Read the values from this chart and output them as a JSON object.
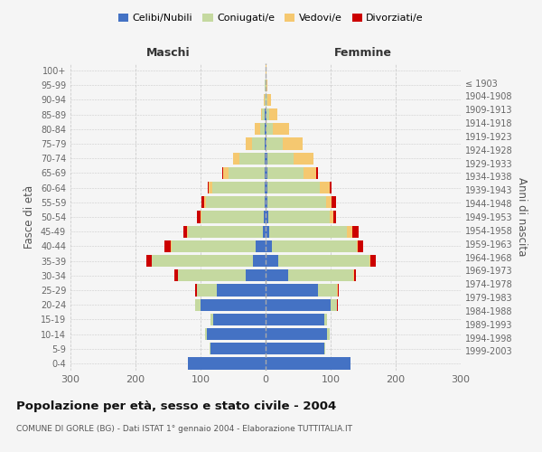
{
  "age_groups": [
    "0-4",
    "5-9",
    "10-14",
    "15-19",
    "20-24",
    "25-29",
    "30-34",
    "35-39",
    "40-44",
    "45-49",
    "50-54",
    "55-59",
    "60-64",
    "65-69",
    "70-74",
    "75-79",
    "80-84",
    "85-89",
    "90-94",
    "95-99",
    "100+"
  ],
  "birth_years": [
    "1999-2003",
    "1994-1998",
    "1989-1993",
    "1984-1988",
    "1979-1983",
    "1974-1978",
    "1969-1973",
    "1964-1968",
    "1959-1963",
    "1954-1958",
    "1949-1953",
    "1944-1948",
    "1939-1943",
    "1934-1938",
    "1929-1933",
    "1924-1928",
    "1919-1923",
    "1914-1918",
    "1909-1913",
    "1904-1908",
    "≤ 1903"
  ],
  "male_single": [
    120,
    85,
    90,
    80,
    100,
    75,
    30,
    20,
    15,
    4,
    3,
    2,
    2,
    2,
    2,
    1,
    1,
    1,
    0,
    0,
    0
  ],
  "male_married": [
    0,
    1,
    3,
    5,
    8,
    30,
    105,
    155,
    130,
    115,
    95,
    90,
    80,
    55,
    38,
    20,
    8,
    4,
    2,
    1,
    0
  ],
  "male_widowed": [
    0,
    0,
    0,
    0,
    0,
    1,
    0,
    0,
    1,
    2,
    2,
    2,
    5,
    8,
    10,
    10,
    8,
    2,
    1,
    0,
    0
  ],
  "male_divorced": [
    0,
    0,
    0,
    0,
    0,
    2,
    5,
    8,
    10,
    5,
    5,
    5,
    2,
    1,
    0,
    0,
    0,
    0,
    0,
    0,
    0
  ],
  "female_single": [
    130,
    90,
    95,
    90,
    100,
    80,
    35,
    20,
    10,
    5,
    4,
    3,
    3,
    3,
    3,
    2,
    1,
    1,
    0,
    0,
    0
  ],
  "female_married": [
    0,
    2,
    3,
    5,
    10,
    30,
    100,
    140,
    130,
    120,
    95,
    90,
    80,
    55,
    40,
    25,
    10,
    5,
    3,
    1,
    0
  ],
  "female_widowed": [
    0,
    0,
    0,
    0,
    0,
    1,
    1,
    1,
    2,
    8,
    5,
    8,
    15,
    20,
    30,
    30,
    25,
    12,
    5,
    2,
    1
  ],
  "female_divorced": [
    0,
    0,
    0,
    0,
    1,
    2,
    3,
    8,
    8,
    10,
    5,
    8,
    3,
    2,
    1,
    0,
    0,
    0,
    0,
    0,
    0
  ],
  "colors": {
    "single": "#4472c4",
    "married": "#c5d9a0",
    "widowed": "#f5c870",
    "divorced": "#cc0000"
  },
  "legend_labels": [
    "Celibi/Nubili",
    "Coniugati/e",
    "Vedovi/e",
    "Divorziati/e"
  ],
  "title": "Popolazione per età, sesso e stato civile - 2004",
  "subtitle": "COMUNE DI GORLE (BG) - Dati ISTAT 1° gennaio 2004 - Elaborazione TUTTITALIA.IT",
  "header_left": "Maschi",
  "header_right": "Femmine",
  "ylabel_left": "Fasce di età",
  "ylabel_right": "Anni di nascita",
  "xlim": 300,
  "background": "#f5f5f5",
  "grid_color": "#cccccc"
}
